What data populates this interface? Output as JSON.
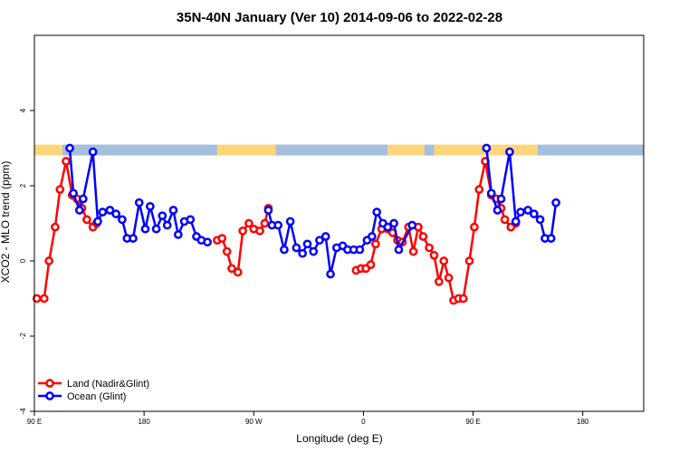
{
  "chart_data": {
    "type": "line",
    "title": "35N-40N January (Ver 10)   2014-09-06 to 2022-02-28",
    "xlabel": "Longitude (deg E)",
    "ylabel": "XCO2 - MLO trend (ppm)",
    "xlim": [
      90,
      590
    ],
    "ylim": [
      -4,
      6
    ],
    "x_ticks": [
      {
        "value": 90,
        "label": "90 E"
      },
      {
        "value": 180,
        "label": "180"
      },
      {
        "value": 270,
        "label": "90 W"
      },
      {
        "value": 360,
        "label": "0"
      },
      {
        "value": 450,
        "label": "90 E"
      },
      {
        "value": 540,
        "label": "180"
      }
    ],
    "y_ticks": [
      -4,
      -2,
      0,
      2,
      4
    ],
    "legend_position": "bottom-left",
    "land_ocean_bar": {
      "y": 2.95,
      "land_color": "#fdd67b",
      "ocean_color": "#a5bfdd",
      "segments": [
        {
          "from": 90,
          "to": 113,
          "type": "land"
        },
        {
          "from": 113,
          "to": 240,
          "type": "ocean"
        },
        {
          "from": 240,
          "to": 288,
          "type": "land"
        },
        {
          "from": 288,
          "to": 380,
          "type": "ocean"
        },
        {
          "from": 380,
          "to": 410,
          "type": "land"
        },
        {
          "from": 410,
          "to": 418,
          "type": "ocean"
        },
        {
          "from": 418,
          "to": 503,
          "type": "land"
        },
        {
          "from": 503,
          "to": 590,
          "type": "ocean"
        }
      ]
    },
    "series": [
      {
        "name": "Land (Nadir&Glint)",
        "color": "#ff0000",
        "segments": [
          [
            [
              92,
              -1.0
            ],
            [
              98,
              -1.0
            ],
            [
              102,
              0.0
            ],
            [
              107,
              0.9
            ],
            [
              111,
              1.9
            ],
            [
              116,
              2.65
            ],
            [
              121,
              1.75
            ],
            [
              125,
              1.65
            ],
            [
              129,
              1.4
            ],
            [
              133,
              1.1
            ],
            [
              138,
              0.9
            ],
            [
              141,
              1.0
            ]
          ],
          [
            [
              240,
              0.55
            ],
            [
              244,
              0.6
            ],
            [
              248,
              0.25
            ],
            [
              252,
              -0.2
            ],
            [
              257,
              -0.3
            ],
            [
              261,
              0.8
            ],
            [
              266,
              1.0
            ],
            [
              270,
              0.85
            ],
            [
              275,
              0.8
            ],
            [
              279,
              1.0
            ],
            [
              282,
              1.4
            ]
          ],
          [
            [
              354,
              -0.25
            ],
            [
              358,
              -0.2
            ],
            [
              362,
              -0.2
            ],
            [
              366,
              -0.1
            ],
            [
              370,
              0.45
            ],
            [
              375,
              0.85
            ],
            [
              380,
              0.85
            ],
            [
              384,
              0.75
            ],
            [
              388,
              0.55
            ],
            [
              392,
              0.5
            ],
            [
              397,
              0.9
            ],
            [
              401,
              0.25
            ],
            [
              405,
              0.9
            ],
            [
              409,
              0.65
            ],
            [
              414,
              0.35
            ],
            [
              418,
              0.15
            ],
            [
              422,
              -0.55
            ],
            [
              426,
              0.0
            ],
            [
              430,
              -0.45
            ],
            [
              434,
              -1.05
            ],
            [
              438,
              -1.0
            ],
            [
              442,
              -1.0
            ],
            [
              447,
              0.0
            ],
            [
              451,
              0.9
            ],
            [
              455,
              1.9
            ],
            [
              460,
              2.65
            ],
            [
              465,
              1.75
            ],
            [
              469,
              1.65
            ],
            [
              473,
              1.4
            ],
            [
              476,
              1.1
            ],
            [
              481,
              0.9
            ],
            [
              485,
              1.0
            ]
          ]
        ]
      },
      {
        "name": "Ocean (Glint)",
        "color": "#0000ff",
        "segments": [
          [
            [
              119,
              3.0
            ],
            [
              122,
              1.8
            ],
            [
              127,
              1.35
            ],
            [
              130,
              1.65
            ],
            [
              138,
              2.9
            ],
            [
              142,
              1.05
            ],
            [
              146,
              1.3
            ],
            [
              152,
              1.35
            ],
            [
              157,
              1.25
            ],
            [
              162,
              1.1
            ],
            [
              166,
              0.6
            ],
            [
              171,
              0.6
            ],
            [
              176,
              1.55
            ],
            [
              181,
              0.85
            ],
            [
              185,
              1.45
            ],
            [
              190,
              0.85
            ],
            [
              195,
              1.2
            ],
            [
              199,
              0.95
            ],
            [
              204,
              1.35
            ],
            [
              208,
              0.7
            ],
            [
              213,
              1.05
            ],
            [
              218,
              1.1
            ],
            [
              223,
              0.65
            ],
            [
              227,
              0.55
            ],
            [
              232,
              0.5
            ]
          ],
          [
            [
              282,
              1.35
            ],
            [
              285,
              0.95
            ],
            [
              290,
              0.95
            ],
            [
              295,
              0.3
            ],
            [
              300,
              1.05
            ],
            [
              305,
              0.35
            ],
            [
              310,
              0.2
            ],
            [
              314,
              0.45
            ],
            [
              319,
              0.25
            ],
            [
              324,
              0.55
            ],
            [
              329,
              0.65
            ],
            [
              333,
              -0.35
            ],
            [
              338,
              0.35
            ],
            [
              343,
              0.4
            ],
            [
              347,
              0.3
            ],
            [
              352,
              0.3
            ],
            [
              357,
              0.3
            ],
            [
              363,
              0.55
            ],
            [
              367,
              0.65
            ],
            [
              371,
              1.3
            ],
            [
              376,
              1.0
            ],
            [
              380,
              0.9
            ],
            [
              385,
              1.0
            ],
            [
              389,
              0.3
            ],
            [
              400,
              0.95
            ]
          ],
          [
            [
              461,
              3.0
            ],
            [
              465,
              1.8
            ],
            [
              470,
              1.35
            ],
            [
              473,
              1.65
            ],
            [
              480,
              2.9
            ],
            [
              485,
              1.05
            ],
            [
              489,
              1.3
            ],
            [
              495,
              1.35
            ],
            [
              500,
              1.25
            ],
            [
              505,
              1.1
            ],
            [
              509,
              0.6
            ],
            [
              514,
              0.6
            ],
            [
              518,
              1.55
            ]
          ]
        ]
      }
    ]
  }
}
